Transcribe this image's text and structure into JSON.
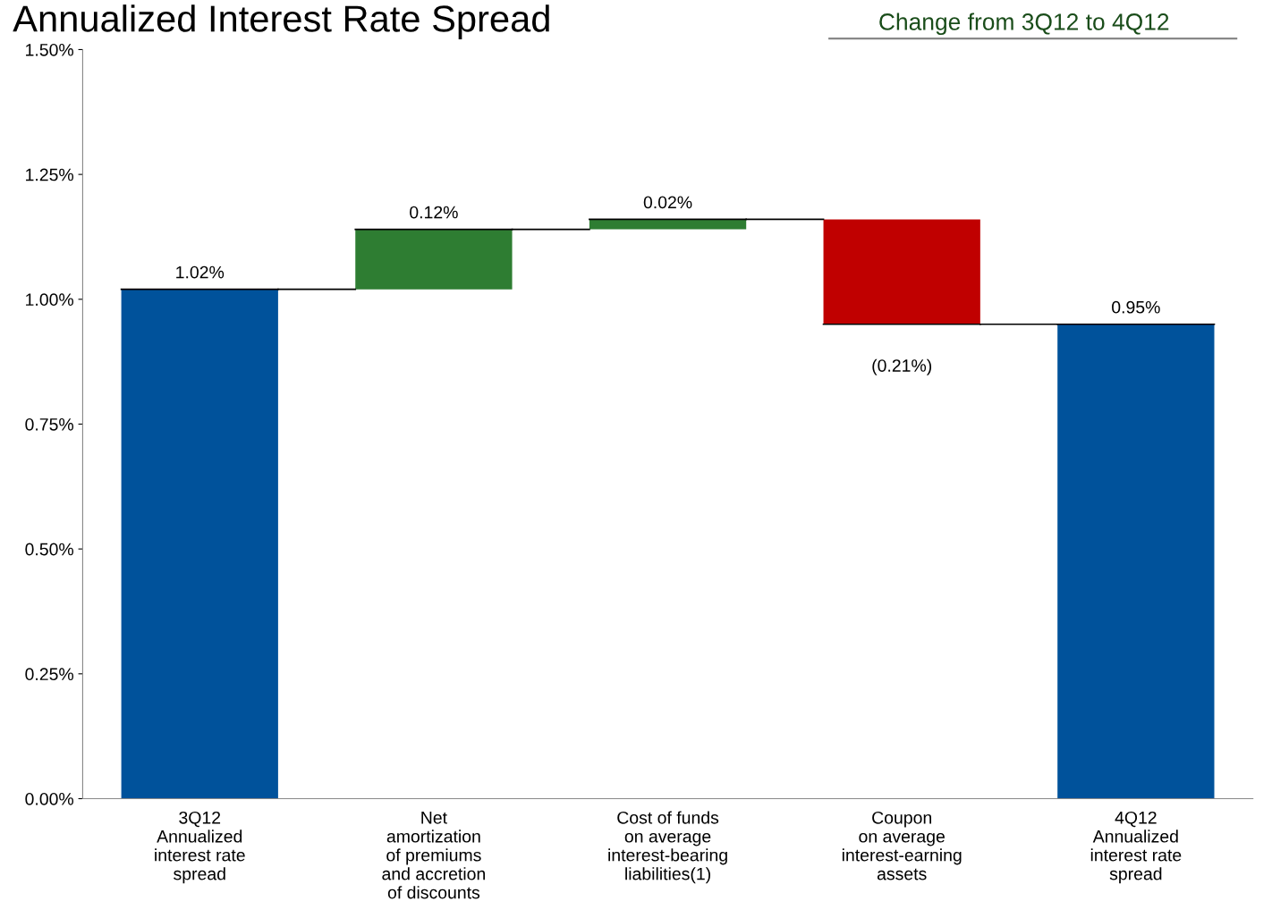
{
  "chart_data": {
    "type": "bar",
    "title": "Annualized Interest Rate Spread",
    "subtitle": "Change from 3Q12 to 4Q12",
    "categories": [
      "3Q12\nAnnualized\ninterest rate\nspread",
      "Net\namortization\nof premiums\nand accretion\nof discounts",
      "Cost of funds\non average\ninterest-bearing\nliabilities(1)",
      "Coupon\non average\ninterest-earning\nassets",
      "4Q12\nAnnualized\ninterest rate\nspread"
    ],
    "values": [
      1.02,
      0.12,
      0.02,
      -0.21,
      0.95
    ],
    "base": [
      0,
      1.02,
      1.14,
      1.16,
      0
    ],
    "colors": [
      "#00529b",
      "#2e7d32",
      "#2e7d32",
      "#c00000",
      "#00529b"
    ],
    "value_labels": [
      "1.02%",
      "0.12%",
      "0.02%",
      "(0.21%)",
      "0.95%"
    ],
    "ylim": [
      0,
      1.5
    ],
    "yticks": [
      {
        "value": 0,
        "label": "0.00%"
      },
      {
        "value": 0.25,
        "label": "0.25%"
      },
      {
        "value": 0.5,
        "label": "0.50%"
      },
      {
        "value": 0.75,
        "label": "0.75%"
      },
      {
        "value": 1.0,
        "label": "1.00%"
      },
      {
        "value": 1.25,
        "label": "1.25%"
      },
      {
        "value": 1.5,
        "label": "1.50%"
      }
    ],
    "grid": false,
    "legend": false
  }
}
